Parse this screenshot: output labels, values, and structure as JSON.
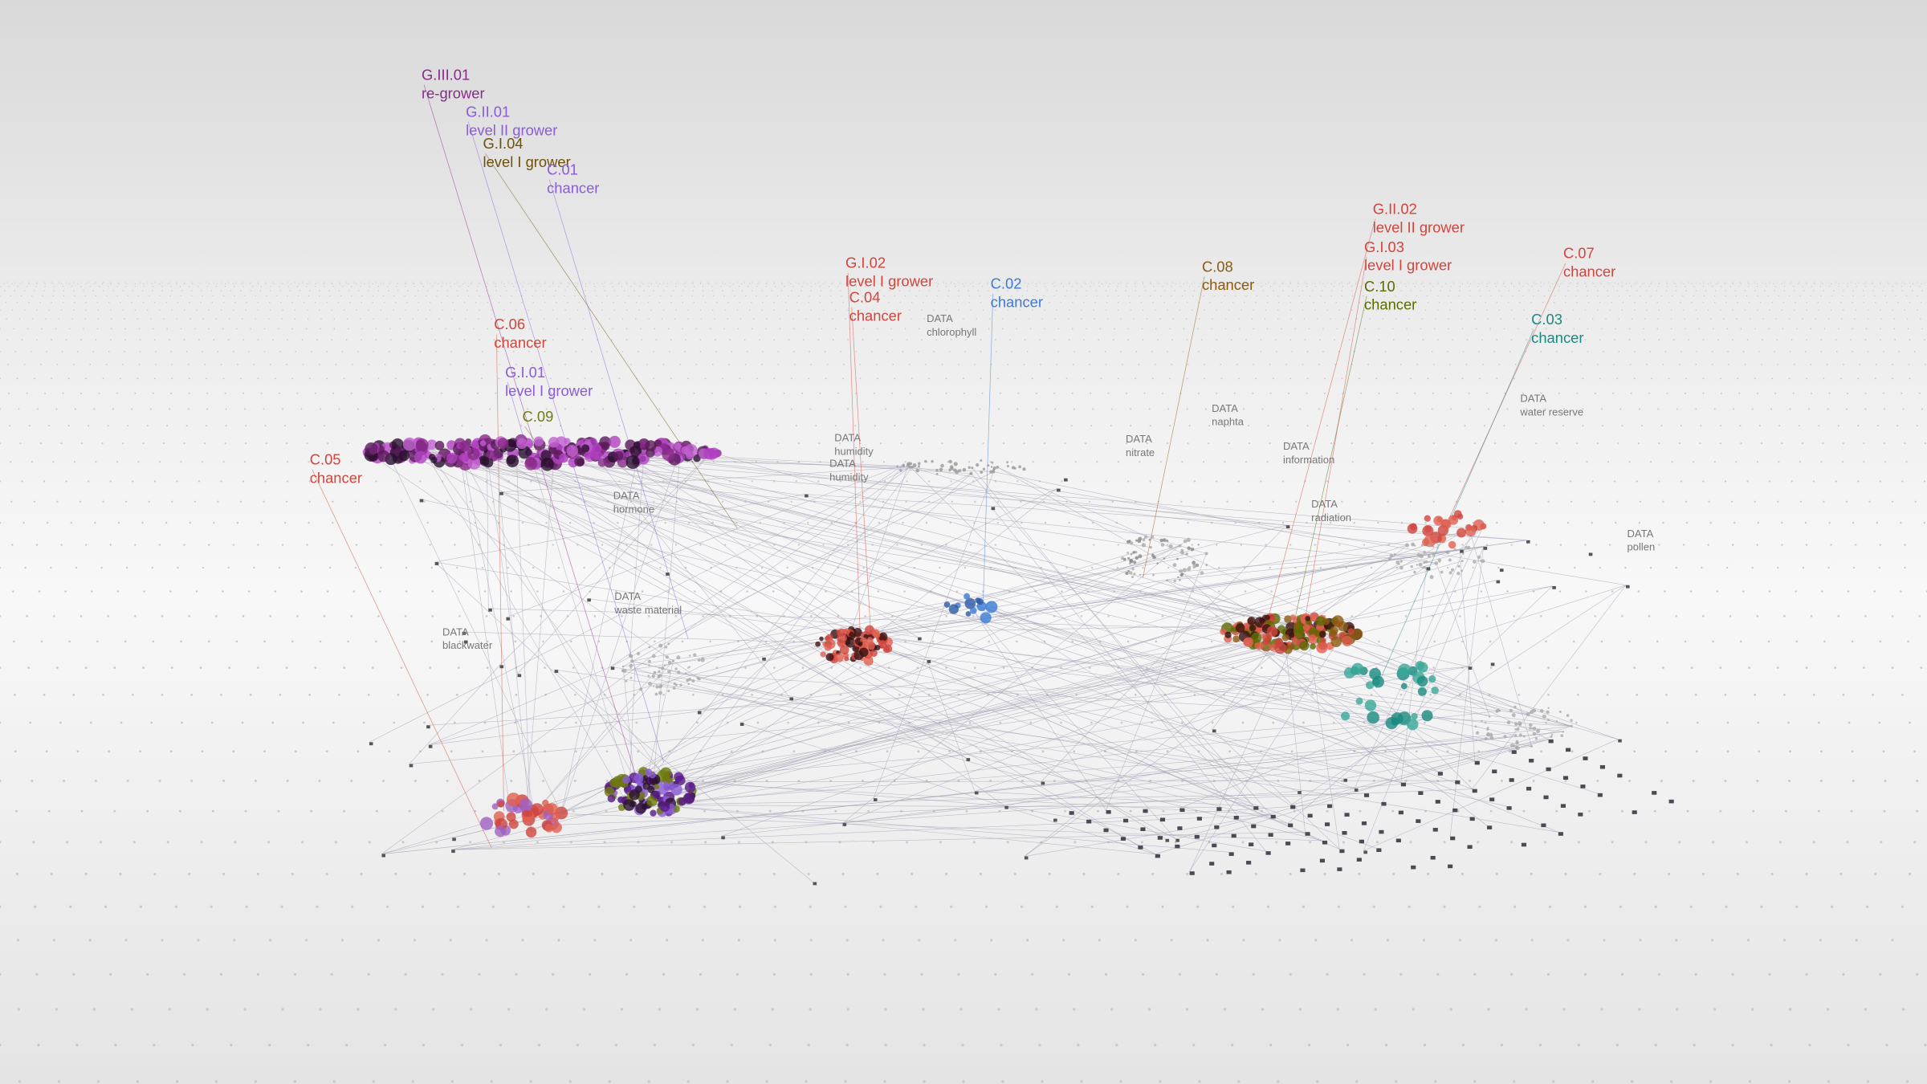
{
  "labels": [
    {
      "code": "G.III.01",
      "role": "re-grower",
      "color": "#8a2a8a"
    },
    {
      "code": "G.II.01",
      "role": "level II grower",
      "color": "#8b5cd6"
    },
    {
      "code": "G.I.04",
      "role": "level I grower",
      "color": "#6e5008"
    },
    {
      "code": "C.01",
      "role": "chancer",
      "color": "#8b5cd6"
    },
    {
      "code": "C.06",
      "role": "chancer",
      "color": "#d0453d"
    },
    {
      "code": "G.I.01",
      "role": "level I grower",
      "color": "#8b5cd6"
    },
    {
      "code": "C.09",
      "color": "#6f7a10"
    },
    {
      "code": "C.05",
      "role": "chancer",
      "color": "#d0453d"
    },
    {
      "code": "G.I.02",
      "role": "level I grower",
      "color": "#d0453d"
    },
    {
      "code": "C.04",
      "role": "chancer",
      "color": "#d0453d"
    },
    {
      "code": "C.02",
      "role": "chancer",
      "color": "#3a7bd5"
    },
    {
      "code": "C.08",
      "role": "chancer",
      "color": "#8a5a10"
    },
    {
      "code": "G.II.02",
      "role": "level II grower",
      "color": "#d0453d"
    },
    {
      "code": "G.I.03",
      "role": "level I grower",
      "color": "#d0453d"
    },
    {
      "code": "C.10",
      "role": "chancer",
      "color": "#5a6a00"
    },
    {
      "code": "C.07",
      "role": "chancer",
      "color": "#d0453d"
    },
    {
      "code": "C.03",
      "role": "chancer",
      "color": "#1a8a80"
    }
  ],
  "data_nodes": [
    {
      "tag": "DATA",
      "name": "chlorophyll"
    },
    {
      "tag": "DATA",
      "name": "naphta"
    },
    {
      "tag": "DATA",
      "name": "water reserve"
    },
    {
      "tag": "DATA",
      "name": "humidity"
    },
    {
      "tag": "DATA",
      "name": "humidity"
    },
    {
      "tag": "DATA",
      "name": "nitrate"
    },
    {
      "tag": "DATA",
      "name": "information"
    },
    {
      "tag": "DATA",
      "name": "hormone"
    },
    {
      "tag": "DATA",
      "name": "radiation"
    },
    {
      "tag": "DATA",
      "name": "pollen"
    },
    {
      "tag": "DATA",
      "name": "waste material"
    },
    {
      "tag": "DATA",
      "name": "blackwater"
    }
  ]
}
